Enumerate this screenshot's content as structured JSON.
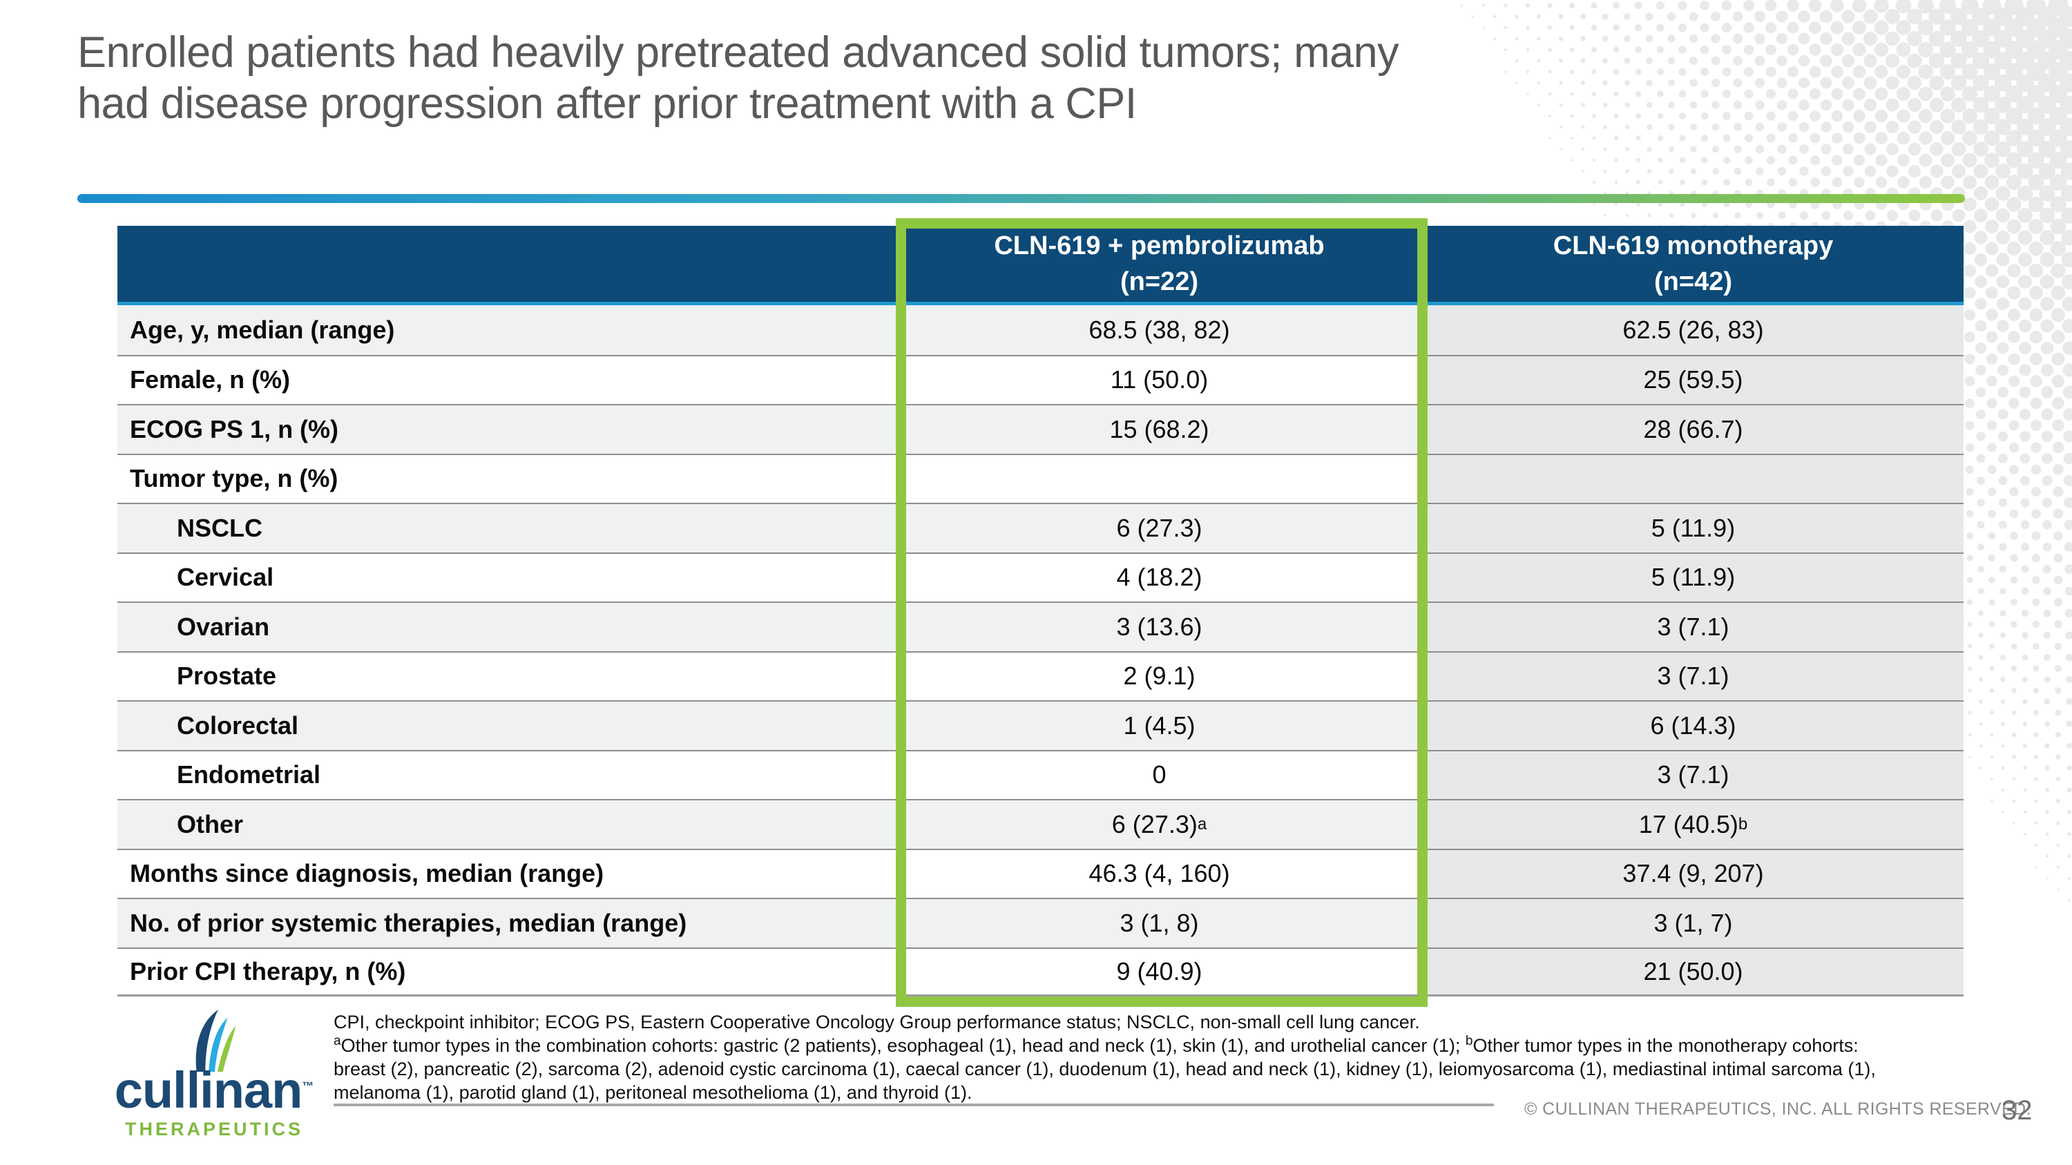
{
  "slide": {
    "title_line1": "Enrolled patients had heavily pretreated advanced solid tumors; many",
    "title_line2": "had disease progression after prior treatment with a CPI",
    "page_number": "32",
    "copyright": "© CULLINAN THERAPEUTICS, INC. ALL RIGHTS RESERVED."
  },
  "logo": {
    "wordmark": "cullinan",
    "trademark": "™",
    "subtitle": "THERAPEUTICS",
    "leaf_icon": "three-petal-leaf"
  },
  "colors": {
    "header_navy": "#0d4a78",
    "accent_cyan": "#2199cf",
    "highlight_green": "#8fc741",
    "title_gray": "#58595b",
    "row_light": "#f0f1f1",
    "row_white": "#ffffff",
    "mono_column_gray": "#e7e8e8",
    "rule_gradient_start": "#1b8ccc",
    "rule_gradient_end": "#8fc741"
  },
  "table": {
    "header": {
      "combo": {
        "line1": "CLN-619 + pembrolizumab",
        "line2": "(n=22)"
      },
      "mono": {
        "line1": "CLN-619 monotherapy",
        "line2": "(n=42)"
      }
    },
    "rows": [
      {
        "label": "Age, y, median (range)",
        "indent": false,
        "combo": "68.5 (38, 82)",
        "mono": "62.5 (26, 83)"
      },
      {
        "label": "Female, n (%)",
        "indent": false,
        "combo": "11 (50.0)",
        "mono": "25 (59.5)"
      },
      {
        "label": "ECOG PS 1, n (%)",
        "indent": false,
        "combo": "15 (68.2)",
        "mono": "28 (66.7)"
      },
      {
        "label": "Tumor type, n (%)",
        "indent": false,
        "combo": "",
        "mono": ""
      },
      {
        "label": "NSCLC",
        "indent": true,
        "combo": "6 (27.3)",
        "mono": "5 (11.9)"
      },
      {
        "label": "Cervical",
        "indent": true,
        "combo": "4 (18.2)",
        "mono": "5 (11.9)"
      },
      {
        "label": "Ovarian",
        "indent": true,
        "combo": "3 (13.6)",
        "mono": "3 (7.1)"
      },
      {
        "label": "Prostate",
        "indent": true,
        "combo": "2 (9.1)",
        "mono": "3 (7.1)"
      },
      {
        "label": "Colorectal",
        "indent": true,
        "combo": "1 (4.5)",
        "mono": "6 (14.3)"
      },
      {
        "label": "Endometrial",
        "indent": true,
        "combo": "0",
        "mono": "3 (7.1)"
      },
      {
        "label": "Other",
        "indent": true,
        "combo": "6 (27.3)",
        "combo_sup": "a",
        "mono": "17 (40.5)",
        "mono_sup": "b"
      },
      {
        "label": "Months since diagnosis, median (range)",
        "indent": false,
        "combo": "46.3 (4, 160)",
        "mono": "37.4 (9, 207)"
      },
      {
        "label": "No. of prior systemic therapies, median (range)",
        "indent": false,
        "combo": "3 (1, 8)",
        "mono": "3 (1, 7)"
      },
      {
        "label": "Prior CPI therapy, n (%)",
        "indent": false,
        "combo": "9 (40.9)",
        "mono": "21 (50.0)"
      }
    ]
  },
  "footnotes": {
    "lines": [
      [
        {
          "t": "CPI, checkpoint inhibitor; ECOG PS, Eastern Cooperative Oncology Group performance status; NSCLC, non-small cell lung cancer."
        }
      ],
      [
        {
          "s": "a"
        },
        {
          "t": "Other tumor types in the combination cohorts: gastric (2 patients), esophageal (1), head and neck (1), skin (1), and urothelial cancer (1); "
        },
        {
          "s": "b"
        },
        {
          "t": "Other tumor types in the monotherapy cohorts:"
        }
      ],
      [
        {
          "t": "breast (2), pancreatic (2), sarcoma (2), adenoid cystic carcinoma (1), caecal cancer (1), duodenum (1), head and neck (1), kidney (1), leiomyosarcoma (1), mediastinal intimal sarcoma (1),"
        }
      ],
      [
        {
          "t": "melanoma (1), parotid gland (1), peritoneal mesothelioma (1), and thyroid (1)."
        }
      ]
    ]
  }
}
